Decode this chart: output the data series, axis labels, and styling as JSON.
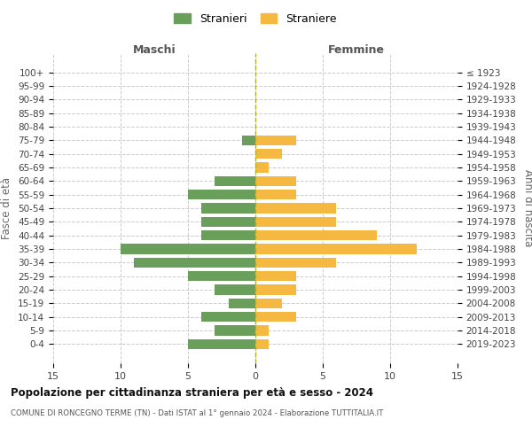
{
  "age_groups": [
    "100+",
    "95-99",
    "90-94",
    "85-89",
    "80-84",
    "75-79",
    "70-74",
    "65-69",
    "60-64",
    "55-59",
    "50-54",
    "45-49",
    "40-44",
    "35-39",
    "30-34",
    "25-29",
    "20-24",
    "15-19",
    "10-14",
    "5-9",
    "0-4"
  ],
  "birth_years": [
    "≤ 1923",
    "1924-1928",
    "1929-1933",
    "1934-1938",
    "1939-1943",
    "1944-1948",
    "1949-1953",
    "1954-1958",
    "1959-1963",
    "1964-1968",
    "1969-1973",
    "1974-1978",
    "1979-1983",
    "1984-1988",
    "1989-1993",
    "1994-1998",
    "1999-2003",
    "2004-2008",
    "2009-2013",
    "2014-2018",
    "2019-2023"
  ],
  "maschi": [
    0,
    0,
    0,
    0,
    0,
    1,
    0,
    0,
    3,
    5,
    4,
    4,
    4,
    10,
    9,
    5,
    3,
    2,
    4,
    3,
    5
  ],
  "femmine": [
    0,
    0,
    0,
    0,
    0,
    3,
    2,
    1,
    3,
    3,
    6,
    6,
    9,
    12,
    6,
    3,
    3,
    2,
    3,
    1,
    1
  ],
  "maschi_color": "#6a9e5b",
  "femmine_color": "#f5b942",
  "title_main": "Popolazione per cittadinanza straniera per età e sesso - 2024",
  "title_sub": "COMUNE DI RONCEGNO TERME (TN) - Dati ISTAT al 1° gennaio 2024 - Elaborazione TUTTITALIA.IT",
  "xlabel_left": "Maschi",
  "xlabel_right": "Femmine",
  "ylabel_left": "Fasce di età",
  "ylabel_right": "Anni di nascita",
  "legend_maschi": "Stranieri",
  "legend_femmine": "Straniere",
  "xlim": 15,
  "background_color": "#ffffff",
  "grid_color": "#cccccc"
}
